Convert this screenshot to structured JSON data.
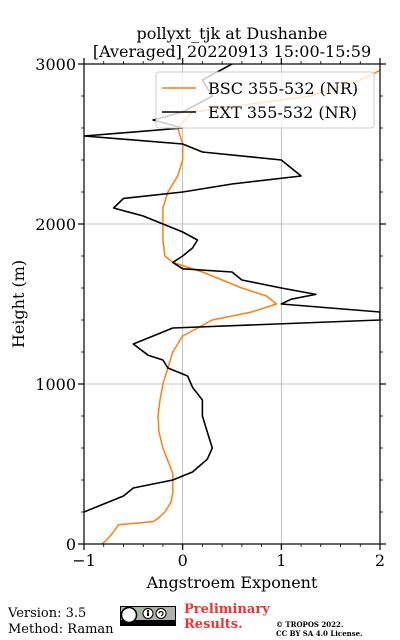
{
  "chart_data": {
    "type": "line",
    "title_line1": "pollyxt_tjk at Dushanbe",
    "title_line2": "[Averaged] 20220913 15:00-15:59",
    "xlabel": "Angstroem Exponent",
    "ylabel": "Height (m)",
    "xlim": [
      -1,
      2
    ],
    "ylim": [
      0,
      3000
    ],
    "xticks": [
      -1,
      0,
      1,
      2
    ],
    "yticks": [
      0,
      1000,
      2000,
      3000
    ],
    "grid": true,
    "legend_position": "top-right",
    "series": [
      {
        "name": "BSC 355-532 (NR)",
        "color": "#ff7f0e",
        "points": [
          [
            -0.82,
            0
          ],
          [
            -0.78,
            20
          ],
          [
            -0.72,
            60
          ],
          [
            -0.65,
            120
          ],
          [
            -0.3,
            140
          ],
          [
            -0.25,
            160
          ],
          [
            -0.18,
            200
          ],
          [
            -0.12,
            260
          ],
          [
            -0.1,
            320
          ],
          [
            -0.1,
            380
          ],
          [
            -0.1,
            440
          ],
          [
            -0.15,
            520
          ],
          [
            -0.2,
            600
          ],
          [
            -0.24,
            700
          ],
          [
            -0.25,
            800
          ],
          [
            -0.23,
            900
          ],
          [
            -0.2,
            1000
          ],
          [
            -0.15,
            1100
          ],
          [
            -0.1,
            1200
          ],
          [
            0.0,
            1300
          ],
          [
            0.3,
            1400
          ],
          [
            0.7,
            1450
          ],
          [
            0.95,
            1500
          ],
          [
            0.85,
            1550
          ],
          [
            0.6,
            1600
          ],
          [
            0.2,
            1700
          ],
          [
            -0.1,
            1760
          ],
          [
            -0.18,
            1800
          ],
          [
            -0.2,
            1900
          ],
          [
            -0.2,
            2000
          ],
          [
            -0.2,
            2100
          ],
          [
            -0.15,
            2200
          ],
          [
            -0.05,
            2300
          ],
          [
            0.0,
            2400
          ],
          [
            0.0,
            2500
          ],
          [
            -0.05,
            2600
          ],
          [
            0.1,
            2700
          ],
          [
            1.3,
            2800
          ],
          [
            1.8,
            2900
          ],
          [
            2.0,
            2960
          ]
        ]
      },
      {
        "name": "EXT 355-532 (NR)",
        "color": "#000000",
        "points": [
          [
            -1.0,
            200
          ],
          [
            -0.8,
            250
          ],
          [
            -0.6,
            300
          ],
          [
            -0.5,
            350
          ],
          [
            -0.1,
            400
          ],
          [
            0.1,
            450
          ],
          [
            0.25,
            530
          ],
          [
            0.3,
            600
          ],
          [
            0.25,
            700
          ],
          [
            0.2,
            800
          ],
          [
            0.2,
            900
          ],
          [
            0.1,
            980
          ],
          [
            0.05,
            1050
          ],
          [
            -0.15,
            1100
          ],
          [
            -0.2,
            1150
          ],
          [
            -0.35,
            1180
          ],
          [
            -0.5,
            1250
          ],
          [
            -0.3,
            1300
          ],
          [
            -0.1,
            1350
          ],
          [
            2.0,
            1400
          ],
          [
            2.0,
            1450
          ],
          [
            1.0,
            1500
          ],
          [
            1.1,
            1530
          ],
          [
            1.35,
            1560
          ],
          [
            1.0,
            1600
          ],
          [
            0.6,
            1650
          ],
          [
            0.5,
            1700
          ],
          [
            0.0,
            1720
          ],
          [
            -0.1,
            1760
          ],
          [
            0.0,
            1800
          ],
          [
            0.1,
            1850
          ],
          [
            0.15,
            1900
          ],
          [
            0.0,
            1950
          ],
          [
            -0.2,
            2000
          ],
          [
            -0.4,
            2050
          ],
          [
            -0.7,
            2100
          ],
          [
            -0.6,
            2160
          ],
          [
            0.0,
            2200
          ],
          [
            0.5,
            2250
          ],
          [
            1.2,
            2300
          ],
          [
            1.1,
            2350
          ],
          [
            1.0,
            2400
          ],
          [
            0.2,
            2450
          ],
          [
            0.0,
            2500
          ],
          [
            -1.0,
            2550
          ],
          [
            0.0,
            2600
          ],
          [
            -0.3,
            2650
          ],
          [
            0.0,
            2700
          ],
          [
            0.3,
            2800
          ],
          [
            0.2,
            2900
          ],
          [
            0.5,
            3000
          ]
        ]
      }
    ]
  },
  "footer": {
    "version": "Version: 3.5",
    "method": "Method: Raman",
    "preliminary_line1": "Preliminary",
    "preliminary_line2": "Results.",
    "copyright_line1": "© TROPOS 2022.",
    "copyright_line2": "CC BY SA 4.0 License."
  }
}
